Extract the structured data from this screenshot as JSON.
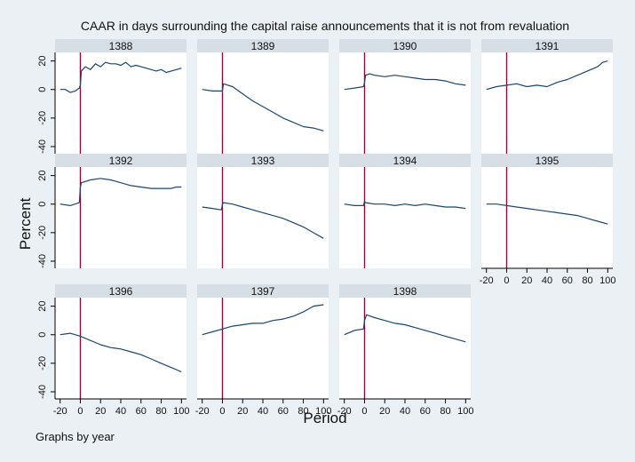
{
  "chart_data": {
    "type": "line",
    "title": "CAAR in days surrounding the capital raise announcements that it is not from revaluation",
    "xlabel": "Period",
    "ylabel": "Percent",
    "note": "Graphs by year",
    "xlim": [
      -25,
      105
    ],
    "ylim": [
      -45,
      26
    ],
    "xticks": [
      -20,
      0,
      20,
      40,
      60,
      80,
      100
    ],
    "yticks": [
      20,
      0,
      -20,
      -40
    ],
    "event_line_x": 0,
    "colors": {
      "line": "#1a476f",
      "event_line": "#990033",
      "header": "#d6dfe6",
      "panel_bg": "#ffffff"
    },
    "panels": [
      {
        "name": "1388",
        "x": [
          -20,
          -15,
          -10,
          -5,
          -1,
          0,
          1,
          5,
          10,
          15,
          20,
          25,
          30,
          35,
          40,
          45,
          50,
          55,
          60,
          65,
          70,
          75,
          80,
          85,
          90,
          95,
          100
        ],
        "y": [
          0,
          0,
          -2,
          -1,
          1,
          3,
          13,
          16,
          14,
          18,
          16,
          19,
          18,
          18,
          17,
          19,
          16,
          17,
          16,
          15,
          14,
          13,
          14,
          12,
          13,
          14,
          15
        ]
      },
      {
        "name": "1389",
        "x": [
          -20,
          -10,
          0,
          1,
          10,
          20,
          30,
          40,
          50,
          60,
          70,
          80,
          90,
          100
        ],
        "y": [
          0,
          -1,
          -1,
          4,
          2,
          -3,
          -8,
          -12,
          -16,
          -20,
          -23,
          -26,
          -27,
          -29
        ]
      },
      {
        "name": "1390",
        "x": [
          -20,
          -10,
          -1,
          0,
          1,
          5,
          10,
          20,
          30,
          40,
          50,
          60,
          70,
          80,
          90,
          100
        ],
        "y": [
          0,
          1,
          2,
          5,
          10,
          11,
          10,
          9,
          10,
          9,
          8,
          7,
          7,
          6,
          4,
          3
        ]
      },
      {
        "name": "1391",
        "x": [
          -20,
          -10,
          0,
          10,
          20,
          30,
          40,
          50,
          60,
          70,
          80,
          90,
          95,
          100
        ],
        "y": [
          0,
          2,
          3,
          4,
          2,
          3,
          2,
          5,
          7,
          10,
          13,
          16,
          19,
          20
        ]
      },
      {
        "name": "1392",
        "x": [
          -20,
          -10,
          -1,
          0,
          1,
          10,
          20,
          30,
          40,
          50,
          60,
          70,
          80,
          90,
          95,
          100
        ],
        "y": [
          0,
          -1,
          1,
          12,
          15,
          17,
          18,
          17,
          15,
          13,
          12,
          11,
          11,
          11,
          12,
          12
        ]
      },
      {
        "name": "1393",
        "x": [
          -20,
          -10,
          -1,
          0,
          1,
          10,
          20,
          30,
          40,
          50,
          60,
          70,
          80,
          90,
          100
        ],
        "y": [
          -2,
          -3,
          -4,
          0,
          1,
          0,
          -2,
          -4,
          -6,
          -8,
          -10,
          -13,
          -16,
          -20,
          -24
        ]
      },
      {
        "name": "1394",
        "x": [
          -20,
          -10,
          -1,
          0,
          1,
          10,
          20,
          30,
          40,
          50,
          60,
          70,
          80,
          90,
          100
        ],
        "y": [
          0,
          -1,
          -1,
          2,
          1,
          0,
          0,
          -1,
          0,
          -1,
          0,
          -1,
          -2,
          -2,
          -3
        ]
      },
      {
        "name": "1395",
        "x": [
          -20,
          -10,
          0,
          10,
          20,
          30,
          40,
          50,
          60,
          70,
          80,
          90,
          100
        ],
        "y": [
          0,
          0,
          -1,
          -2,
          -3,
          -4,
          -5,
          -6,
          -7,
          -8,
          -10,
          -12,
          -14
        ]
      },
      {
        "name": "1396",
        "x": [
          -20,
          -10,
          0,
          10,
          20,
          30,
          40,
          50,
          60,
          70,
          80,
          90,
          100
        ],
        "y": [
          0,
          1,
          -1,
          -4,
          -7,
          -9,
          -10,
          -12,
          -14,
          -17,
          -20,
          -23,
          -26
        ]
      },
      {
        "name": "1397",
        "x": [
          -20,
          -10,
          0,
          10,
          20,
          30,
          40,
          50,
          60,
          70,
          80,
          90,
          100
        ],
        "y": [
          0,
          2,
          4,
          6,
          7,
          8,
          8,
          10,
          11,
          13,
          16,
          20,
          21
        ]
      },
      {
        "name": "1398",
        "x": [
          -20,
          -10,
          -1,
          0,
          2,
          10,
          20,
          30,
          40,
          50,
          60,
          70,
          80,
          90,
          100
        ],
        "y": [
          0,
          3,
          4,
          10,
          14,
          12,
          10,
          8,
          7,
          5,
          3,
          1,
          -1,
          -3,
          -5
        ]
      }
    ]
  }
}
